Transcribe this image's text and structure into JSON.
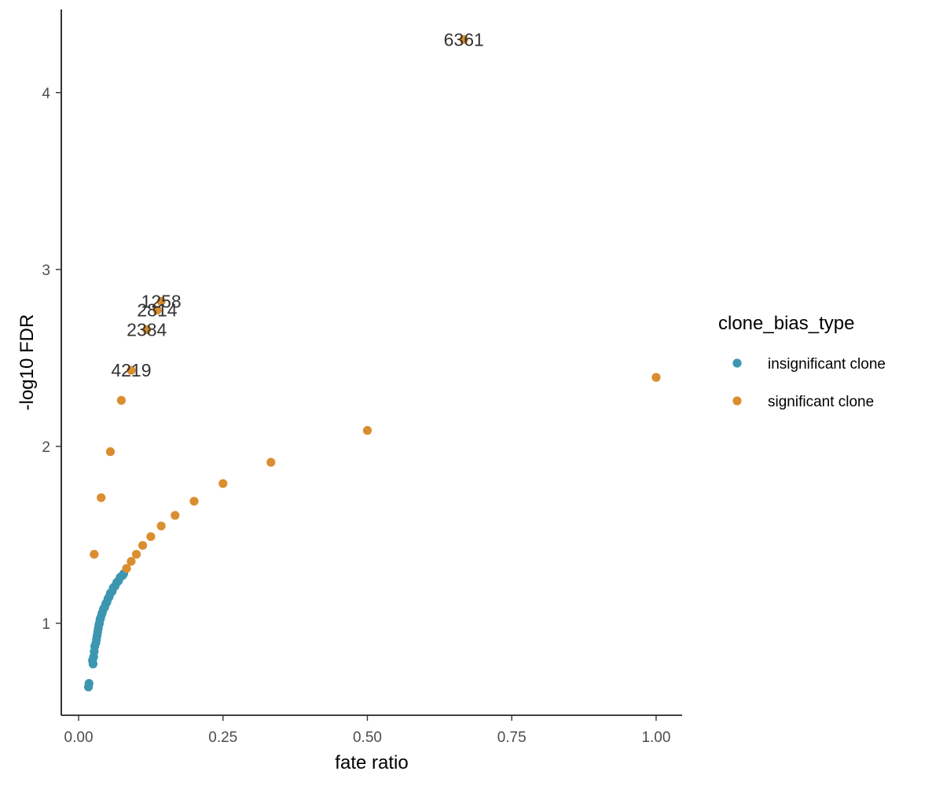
{
  "chart_data": {
    "type": "scatter",
    "xlabel": "fate ratio",
    "ylabel": "-log10 FDR",
    "xlim": [
      -0.03,
      1.045
    ],
    "ylim": [
      0.48,
      4.47
    ],
    "xticks": [
      0.0,
      0.25,
      0.5,
      0.75,
      1.0
    ],
    "xtick_labels": [
      "0.00",
      "0.25",
      "0.50",
      "0.75",
      "1.00"
    ],
    "yticks": [
      1,
      2,
      3,
      4
    ],
    "ytick_labels": [
      "1",
      "2",
      "3",
      "4"
    ],
    "grid": false,
    "legend": {
      "title": "clone_bias_type",
      "position": "right",
      "entries": [
        {
          "label": "insignificant clone",
          "color": "#3d96b0"
        },
        {
          "label": "significant clone",
          "color": "#da8e2f"
        }
      ]
    },
    "series": [
      {
        "name": "insignificant clone",
        "color": "#3d96b0",
        "points": [
          {
            "x": 0.017,
            "y": 0.64
          },
          {
            "x": 0.018,
            "y": 0.66
          },
          {
            "x": 0.025,
            "y": 0.77
          },
          {
            "x": 0.024,
            "y": 0.79
          },
          {
            "x": 0.026,
            "y": 0.81
          },
          {
            "x": 0.027,
            "y": 0.84
          },
          {
            "x": 0.028,
            "y": 0.87
          },
          {
            "x": 0.03,
            "y": 0.89
          },
          {
            "x": 0.031,
            "y": 0.91
          },
          {
            "x": 0.032,
            "y": 0.93
          },
          {
            "x": 0.033,
            "y": 0.95
          },
          {
            "x": 0.034,
            "y": 0.97
          },
          {
            "x": 0.035,
            "y": 0.99
          },
          {
            "x": 0.036,
            "y": 1.0
          },
          {
            "x": 0.037,
            "y": 1.02
          },
          {
            "x": 0.038,
            "y": 1.03
          },
          {
            "x": 0.04,
            "y": 1.05
          },
          {
            "x": 0.041,
            "y": 1.06
          },
          {
            "x": 0.043,
            "y": 1.08
          },
          {
            "x": 0.045,
            "y": 1.09
          },
          {
            "x": 0.047,
            "y": 1.11
          },
          {
            "x": 0.049,
            "y": 1.12
          },
          {
            "x": 0.051,
            "y": 1.14
          },
          {
            "x": 0.053,
            "y": 1.15
          },
          {
            "x": 0.055,
            "y": 1.17
          },
          {
            "x": 0.058,
            "y": 1.18
          },
          {
            "x": 0.06,
            "y": 1.2
          },
          {
            "x": 0.063,
            "y": 1.21
          },
          {
            "x": 0.066,
            "y": 1.23
          },
          {
            "x": 0.069,
            "y": 1.24
          },
          {
            "x": 0.072,
            "y": 1.26
          },
          {
            "x": 0.076,
            "y": 1.27
          },
          {
            "x": 0.078,
            "y": 1.28
          }
        ]
      },
      {
        "name": "significant clone",
        "color": "#da8e2f",
        "points": [
          {
            "x": 0.667,
            "y": 4.3,
            "label": "6361"
          },
          {
            "x": 0.143,
            "y": 2.82,
            "label": "1258"
          },
          {
            "x": 0.136,
            "y": 2.77,
            "label": "2814"
          },
          {
            "x": 0.118,
            "y": 2.66,
            "label": "2384"
          },
          {
            "x": 0.091,
            "y": 2.43,
            "label": "4219"
          },
          {
            "x": 0.074,
            "y": 2.26
          },
          {
            "x": 0.055,
            "y": 1.97
          },
          {
            "x": 0.039,
            "y": 1.71
          },
          {
            "x": 0.027,
            "y": 1.39
          },
          {
            "x": 1.0,
            "y": 2.39
          },
          {
            "x": 0.5,
            "y": 2.09
          },
          {
            "x": 0.333,
            "y": 1.91
          },
          {
            "x": 0.25,
            "y": 1.79
          },
          {
            "x": 0.2,
            "y": 1.69
          },
          {
            "x": 0.167,
            "y": 1.61
          },
          {
            "x": 0.143,
            "y": 1.55
          },
          {
            "x": 0.125,
            "y": 1.49
          },
          {
            "x": 0.111,
            "y": 1.44
          },
          {
            "x": 0.1,
            "y": 1.39
          },
          {
            "x": 0.091,
            "y": 1.35
          },
          {
            "x": 0.083,
            "y": 1.31
          }
        ]
      }
    ]
  }
}
